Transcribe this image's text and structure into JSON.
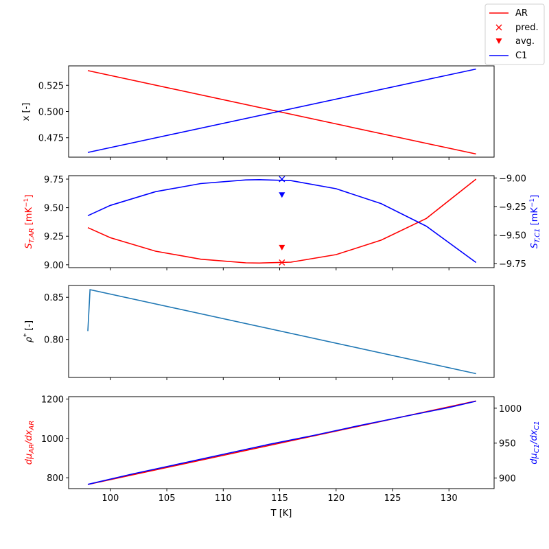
{
  "chart_data": {
    "type": "line",
    "legend": {
      "placement": "top-right",
      "entries": [
        {
          "label": "AR",
          "marker": "line",
          "color": "#ff0000"
        },
        {
          "label": "pred.",
          "marker": "x",
          "color": "#ff0000"
        },
        {
          "label": "avg.",
          "marker": "triangle-down",
          "color": "#ff0000"
        },
        {
          "label": "C1",
          "marker": "line",
          "color": "#0000ff"
        }
      ]
    },
    "x_axis": {
      "label": "T [K]",
      "range": [
        96.3,
        134.0
      ],
      "ticks": [
        100,
        105,
        110,
        115,
        120,
        125,
        130
      ]
    },
    "panels": [
      {
        "id": "composition",
        "ylabel": "x [-]",
        "ylim": [
          0.4565,
          0.5435
        ],
        "yticks": [
          0.475,
          0.5,
          0.525
        ],
        "ytick_labels": [
          "0.475",
          "0.500",
          "0.525"
        ],
        "series": [
          {
            "name": "AR",
            "color": "#ff0000",
            "x": [
              98,
              132.4
            ],
            "y": [
              0.539,
              0.4595
            ]
          },
          {
            "name": "C1",
            "color": "#0000ff",
            "x": [
              98,
              132.4
            ],
            "y": [
              0.461,
              0.5405
            ]
          }
        ]
      },
      {
        "id": "soret",
        "ylabel_left": "S_T,AR [mK⁻¹]",
        "ylabel_right": "S_T,C1 [mK⁻¹]",
        "ylim_left": [
          8.975,
          9.78
        ],
        "yticks_left": [
          9.0,
          9.25,
          9.5,
          9.75
        ],
        "ytick_labels_left": [
          "9.00",
          "9.25",
          "9.50",
          "9.75"
        ],
        "ylim_right": [
          -9.785,
          -8.98
        ],
        "yticks_right": [
          -9.75,
          -9.5,
          -9.25,
          -9.0
        ],
        "ytick_labels_right": [
          "−9.75",
          "−9.50",
          "−9.25",
          "−9.00"
        ],
        "series": [
          {
            "name": "AR",
            "axis": "left",
            "color": "#ff0000",
            "x": [
              98,
              100,
              104,
              108,
              112,
              113.2,
              116,
              120,
              124,
              128,
              132.4
            ],
            "y": [
              9.325,
              9.237,
              9.119,
              9.049,
              9.017,
              9.015,
              9.023,
              9.089,
              9.216,
              9.406,
              9.75
            ]
          },
          {
            "name": "C1",
            "axis": "right",
            "color": "#0000ff",
            "x": [
              98,
              100,
              104,
              108,
              112,
              113.2,
              116,
              120,
              124,
              128,
              132.4
            ],
            "y": [
              -9.33,
              -9.24,
              -9.12,
              -9.049,
              -9.017,
              -9.015,
              -9.023,
              -9.094,
              -9.225,
              -9.422,
              -9.74
            ]
          }
        ],
        "points": [
          {
            "name": "pred.",
            "axis": "left",
            "marker": "x",
            "color": "#ff0000",
            "x": 115.2,
            "y": 9.02
          },
          {
            "name": "avg.",
            "axis": "left",
            "marker": "triangle-down",
            "color": "#ff0000",
            "x": 115.2,
            "y": 9.15
          },
          {
            "name": "pred.",
            "axis": "right",
            "marker": "x",
            "color": "#0000ff",
            "x": 115.2,
            "y": -9.01
          },
          {
            "name": "avg.",
            "axis": "right",
            "marker": "triangle-down",
            "color": "#0000ff",
            "x": 115.2,
            "y": -9.15
          }
        ]
      },
      {
        "id": "density",
        "ylabel": "ρ* [-]",
        "ylim": [
          0.755,
          0.864
        ],
        "yticks": [
          0.8,
          0.85
        ],
        "ytick_labels": [
          "0.80",
          "0.85"
        ],
        "series": [
          {
            "name": "rho",
            "color": "#1f77b4",
            "x": [
              98,
              98.2,
              132.4
            ],
            "y": [
              0.81,
              0.859,
              0.7595
            ]
          }
        ]
      },
      {
        "id": "chempot",
        "ylabel_left": "dμ_AR/dx_AR",
        "ylabel_right": "dμ_C1/dx_C1",
        "ylim_left": [
          745,
          1212
        ],
        "yticks_left": [
          800,
          1000,
          1200
        ],
        "ytick_labels_left": [
          "800",
          "1000",
          "1200"
        ],
        "ylim_right": [
          884.9,
          1016.5
        ],
        "yticks_right": [
          900,
          950,
          1000
        ],
        "ytick_labels_right": [
          "900",
          "950",
          "1000"
        ],
        "series": [
          {
            "name": "AR",
            "axis": "left",
            "color": "#ff0000",
            "x": [
              98,
              132.4
            ],
            "y": [
              766,
              1190
            ]
          },
          {
            "name": "C1",
            "axis": "right",
            "color": "#0000ff",
            "x": [
              98,
              102,
              106,
              110,
              114,
              118,
              122,
              126,
              130,
              132.4
            ],
            "y": [
              891,
              906,
              920,
              934,
              948,
              961,
              975,
              988,
              1001,
              1010
            ]
          }
        ]
      }
    ]
  }
}
